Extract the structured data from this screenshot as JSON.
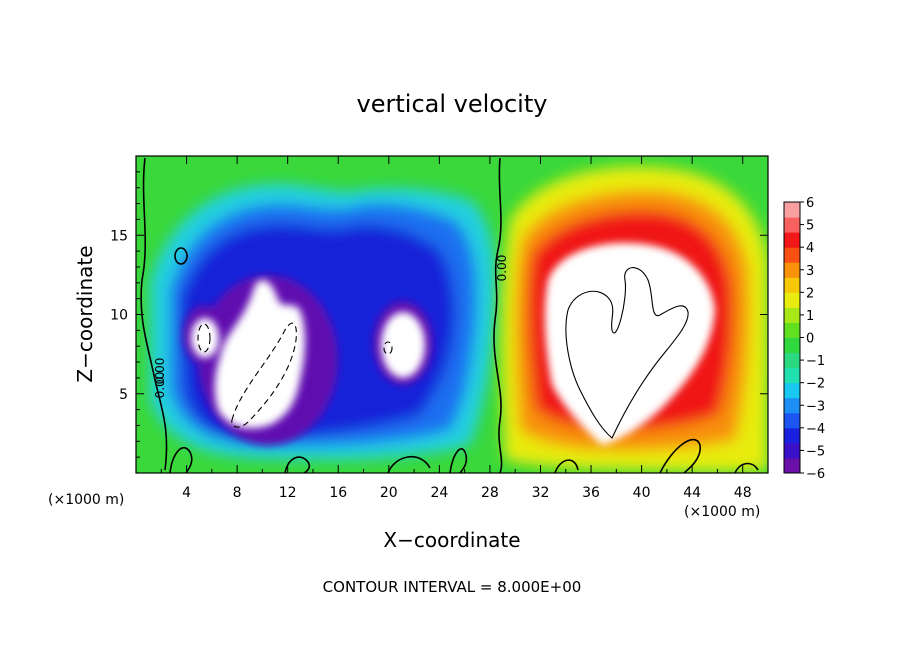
{
  "chart_data": {
    "type": "heatmap",
    "title": "vertical velocity",
    "xlabel": "X−coordinate",
    "ylabel": "Z−coordinate",
    "x_unit_left": "(×1000 m)",
    "x_unit_right": "(×1000 m)",
    "xlim": [
      0,
      50
    ],
    "ylim": [
      0,
      20
    ],
    "x_ticks": [
      4,
      8,
      12,
      16,
      20,
      24,
      28,
      32,
      36,
      40,
      44,
      48
    ],
    "y_ticks": [
      5,
      10,
      15
    ],
    "colorbar": {
      "min": -6,
      "max": 6,
      "tick_labels": [
        "6",
        "5",
        "4",
        "3",
        "2",
        "1",
        "0",
        "−1",
        "−2",
        "−3",
        "−4",
        "−5",
        "−6"
      ],
      "colors": [
        "#6a0fa8",
        "#3a10c8",
        "#1a20e0",
        "#1c55f0",
        "#1e90f5",
        "#18c8f0",
        "#20e0b0",
        "#2ad880",
        "#30d840",
        "#60e020",
        "#a8e818",
        "#e8ec10",
        "#f8c808",
        "#f89008",
        "#f85010",
        "#f01818",
        "#f86060",
        "#f8a0a0"
      ]
    },
    "contour_label": "0.00",
    "footer": "CONTOUR INTERVAL = 8.000E+00",
    "features": [
      {
        "name": "downdraft-west",
        "x_km": 11,
        "z_km": 7,
        "peak_m_s": -6
      },
      {
        "name": "downdraft-west-lobe",
        "x_km": 5,
        "z_km": 8.5,
        "peak_m_s": -6
      },
      {
        "name": "downdraft-center",
        "x_km": 21,
        "z_km": 8,
        "peak_m_s": -6
      },
      {
        "name": "updraft-east",
        "x_km": 38.5,
        "z_km": 9,
        "peak_m_s": 6
      }
    ]
  }
}
